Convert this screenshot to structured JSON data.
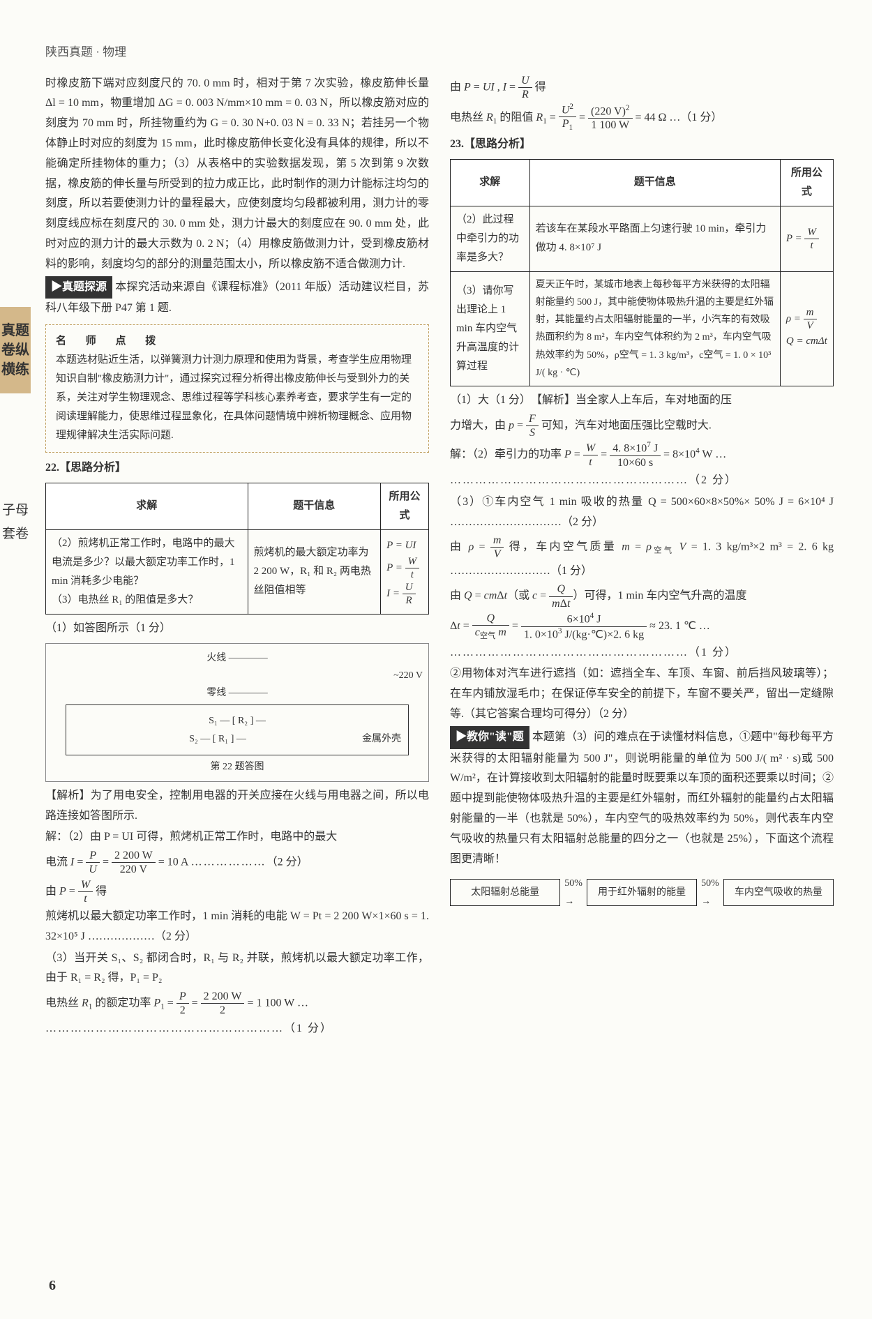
{
  "header": "陕西真题 · 物理",
  "sideTab1": "真题卷纵横练",
  "sideTab2": "子母套卷",
  "pageNo": "6",
  "left": {
    "para1": "时橡皮筋下端对应刻度尺的 70. 0 mm 时，相对于第 7 次实验，橡皮筋伸长量 Δl = 10 mm，物重增加 ΔG = 0. 003 N/mm×10 mm = 0. 03 N，所以橡皮筋对应的刻度为 70 mm 时，所挂物重约为 G = 0. 30 N+0. 03 N = 0. 33 N；若挂另一个物体静止时对应的刻度为 15 mm，此时橡皮筋伸长变化没有具体的规律，所以不能确定所挂物体的重力；（3）从表格中的实验数据发现，第 5 次到第 9 次数据，橡皮筋的伸长量与所受到的拉力成正比，此时制作的测力计能标注均匀的刻度，所以若要使测力计的量程最大，应使刻度均匀段都被利用，测力计的零刻度线应标在刻度尺的 30. 0 mm 处，测力计最大的刻度应在 90. 0 mm 处，此时对应的测力计的最大示数为 0. 2 N；（4）用橡皮筋做测力计，受到橡皮筋材料的影响，刻度均匀的部分的测量范围太小，所以橡皮筋不适合做测力计.",
    "origin": "真题探源",
    "originTxt": "本探究活动来源自《课程标准》（2011 年版）活动建议栏目，苏科八年级下册 P47 第 1 题.",
    "tipsTitle": "名 师 点 拨",
    "tips": "本题选材贴近生活，以弹簧测力计测力原理和使用为背景，考查学生应用物理知识自制\"橡皮筋测力计\"，通过探究过程分析得出橡皮筋伸长与受到外力的关系，关注对学生物理观念、思维过程等学科核心素养考查，要求学生有一定的阅读理解能力，使思维过程显象化，在具体问题情境中辨析物理概念、应用物理规律解决生活实际问题.",
    "q22": "22.【思路分析】",
    "t22": {
      "h": [
        "求解",
        "题干信息",
        "所用公式"
      ],
      "r1": {
        "a": "（2）煎烤机正常工作时，电路中的最大电流是多少？以最大额定功率工作时，1 min 消耗多少电能？",
        "b": "煎烤机的最大额定功率为 2 200 W，R₁ 和 R₂ 两电热丝阻值相等",
        "c": "P = UI\nP = W/t\nI = U/R"
      },
      "r2": {
        "a": "（3）电热丝 R₁ 的阻值是多大？",
        "b": "",
        "c": ""
      }
    },
    "ans1": "（1）如答图所示（1 分）",
    "circuit": {
      "l1": "火线 ————",
      "l2": "零线 ————",
      "v": "~220 V",
      "s1": "S₁",
      "s2": "S₂",
      "r1": "R₁",
      "r2": "R₂",
      "shell": "金属外壳",
      "cap": "第 22 题答图"
    },
    "jx": "【解析】为了用电安全，控制用电器的开关应接在火线与用电器之间，所以电路连接如答图所示.",
    "s2": "解：（2）由 P = UI 可得，煎烤机正常工作时，电路中的最大",
    "s2b": "电流 I = P/U = 2 200 W / 220 V = 10 A  ………………（2 分）",
    "s2c": "由 P = W/t 得",
    "s2d": "煎烤机以最大额定功率工作时，1 min 消耗的电能 W = Pt = 2 200 W×1×60 s = 1. 32×10⁵ J ………………（2 分）",
    "s3": "（3）当开关 S₁、S₂ 都闭合时，R₁ 与 R₂ 并联，煎烤机以最大额定功率工作，由于 R₁ = R₂ 得，P₁ = P₂",
    "s3b": "电热丝 R₁ 的额定功率 P₁ = P/2 = 2 200 W / 2 = 1 100 W  ……",
    "s3c": "…………………………………………………（1 分）"
  },
  "right": {
    "r1": "由 P = UI , I = U/R 得",
    "r2": "电热丝 R₁ 的阻值 R₁ = U²/P₁ = (220 V)² / 1 100 W = 44 Ω  …（1 分）",
    "q23": "23.【思路分析】",
    "t23": {
      "h": [
        "求解",
        "题干信息",
        "所用公式"
      ],
      "r1": {
        "a": "（2）此过程中牵引力的功率是多大？",
        "b": "若该车在某段水平路面上匀速行驶 10 min，牵引力做功 4. 8×10⁷ J",
        "c": "P = W/t"
      },
      "r2": {
        "a": "（3）请你写出理论上 1 min 车内空气升高温度的计算过程",
        "b": "夏天正午时，某城市地表上每秒每平方米获得的太阳辐射能量约 500 J，其中能使物体吸热升温的主要是红外辐射，其能量约占太阳辐射能量的一半，小汽车的有效吸热面积约为 8 m²，车内空气体积约为 2 m³，车内空气吸热效率约为 50%，ρ空气 = 1. 3 kg/m³，c空气 = 1. 0 × 10³ J/( kg · ℃)",
        "c": "ρ = m/V\nQ = cmΔt"
      }
    },
    "a1": "（1）大（1 分）　【解析】当全家人上车后，车对地面的压",
    "a1b": "力增大，由 p = F/S 可知，汽车对地面压强比空载时大.",
    "a2": "解：（2）牵引力的功率 P = W/t = 4. 8×10⁷ J / (10×60 s) = 8×10⁴ W  …",
    "a2b": "…………………………………………………（2 分）",
    "a3": "（3）①车内空气 1 min 吸收的热量 Q = 500×60×8×50%× 50% J = 6×10⁴ J …………………………（2 分）",
    "a3b": "由 ρ = m/V 得，车内空气质量 m = ρ空气 V = 1. 3 kg/m³×2 m³ = 2. 6 kg …………………………………（1 分）",
    "a3c": "由 Q = cmΔt（或 c = Q/(mΔt)）可得，1 min 车内空气升高的温度",
    "a3d": "Δt = Q / (c空气 m) = 6×10⁴ J / (1. 0×10³ J/(kg·℃)×2. 6 kg) ≈ 23. 1 ℃  …",
    "a3e": "…………………………………………………（1 分）",
    "a3f": "②用物体对汽车进行遮挡（如：遮挡全车、车顶、车窗、前后挡风玻璃等）；在车内铺放湿毛巾；在保证停车安全的前提下，车窗不要关严，留出一定缝隙等.（其它答案合理均可得分）（2 分）",
    "read": "教你\"读\"题",
    "readTxt": "本题第（3）问的难点在于读懂材料信息，①题中\"每秒每平方米获得的太阳辐射能量为 500 J\"，则说明能量的单位为 500 J/( m² · s)或 500 W/m²，在计算接收到太阳辐射的能量时既要乘以车顶的面积还要乘以时间；②题中提到能使物体吸热升温的主要是红外辐射，而红外辐射的能量约占太阳辐射能量的一半（也就是 50%），车内空气的吸热效率约为 50%，则代表车内空气吸收的热量只有太阳辐射总能量的四分之一（也就是 25%），下面这个流程图更清晰！",
    "flow": {
      "b1": "太阳辐射总能量",
      "a1": "50%",
      "b2": "用于红外辐射的能量",
      "a2": "50%",
      "b3": "车内空气吸收的热量"
    }
  }
}
